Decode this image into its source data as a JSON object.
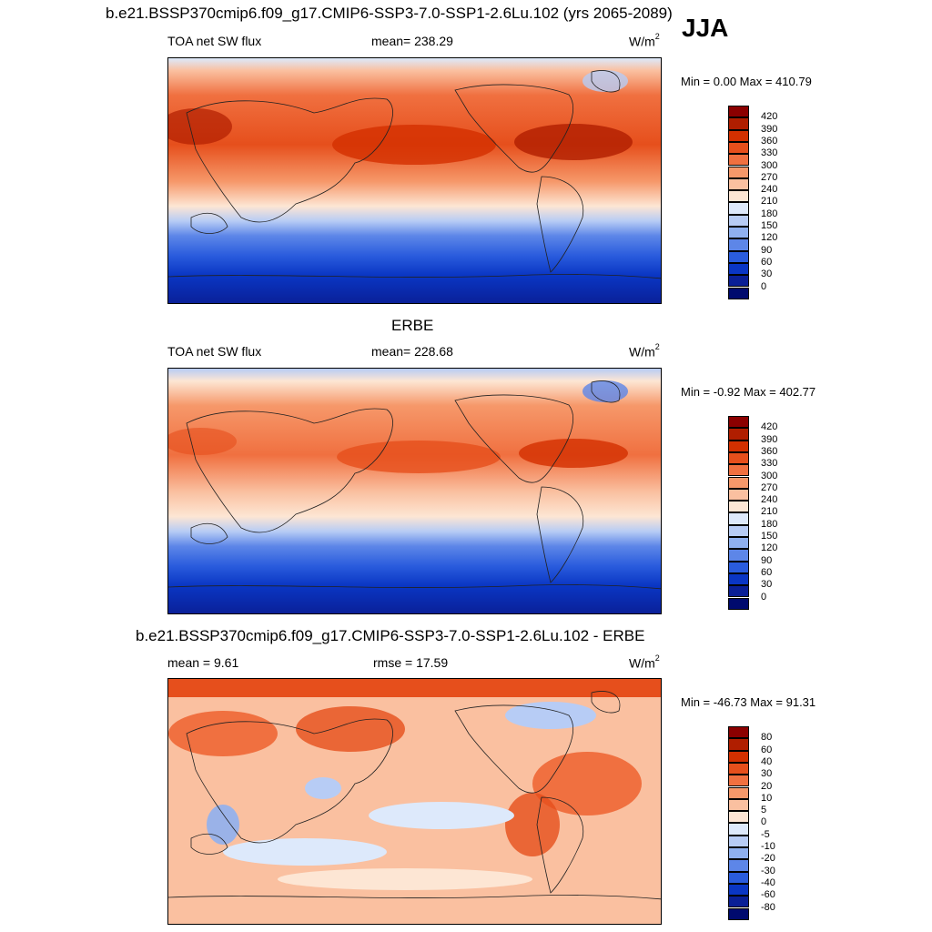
{
  "season": "JJA",
  "panels": [
    {
      "title": "b.e21.BSSP370cmip6.f09_g17.CMIP6-SSP3-7.0-SSP1-2.6Lu.102 (yrs 2065-2089)",
      "left_label": "TOA net SW flux",
      "center_label": "mean= 238.29",
      "units_base": "W/m",
      "units_sup": "2",
      "minmax": "Min =   0.00 Max = 410.79",
      "cbar_key": "abs"
    },
    {
      "title": "ERBE",
      "left_label": "TOA net SW flux",
      "center_label": "mean= 228.68",
      "units_base": "W/m",
      "units_sup": "2",
      "minmax": "Min =  -0.92 Max = 402.77",
      "cbar_key": "abs"
    },
    {
      "title": "b.e21.BSSP370cmip6.f09_g17.CMIP6-SSP3-7.0-SSP1-2.6Lu.102 - ERBE",
      "left_label": "mean =   9.61",
      "center_label": "rmse =  17.59",
      "units_base": "W/m",
      "units_sup": "2",
      "minmax": "Min = -46.73 Max =  91.31",
      "cbar_key": "diff"
    }
  ],
  "colorbars": {
    "abs": {
      "levels": [
        "420",
        "390",
        "360",
        "330",
        "300",
        "270",
        "240",
        "210",
        "180",
        "150",
        "120",
        "90",
        "60",
        "30",
        "0"
      ],
      "colors": [
        "#8b0000",
        "#b01e00",
        "#d33000",
        "#e64f1c",
        "#f07040",
        "#f6986a",
        "#fac0a0",
        "#fde6d4",
        "#dde9fb",
        "#b7ccf5",
        "#8fb0ef",
        "#5d86e8",
        "#2a5cdd",
        "#0a36c4",
        "#0a1f96",
        "#000a6e"
      ]
    },
    "diff": {
      "levels": [
        "80",
        "60",
        "40",
        "30",
        "20",
        "10",
        "5",
        "0",
        "-5",
        "-10",
        "-20",
        "-30",
        "-40",
        "-60",
        "-80"
      ],
      "colors": [
        "#8b0000",
        "#b01e00",
        "#d33000",
        "#e64f1c",
        "#f07040",
        "#f6986a",
        "#fac0a0",
        "#fde6d4",
        "#dde9fb",
        "#b7ccf5",
        "#8fb0ef",
        "#5d86e8",
        "#2a5cdd",
        "#0a36c4",
        "#0a1f96",
        "#000a6e"
      ]
    }
  }
}
